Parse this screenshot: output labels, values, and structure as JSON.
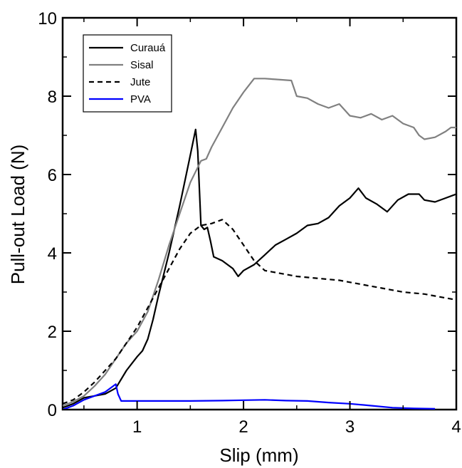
{
  "chart_data": {
    "type": "line",
    "title": "",
    "xlabel": "Slip (mm)",
    "ylabel": "Pull-out Load (N)",
    "xlim": [
      0.3,
      4
    ],
    "ylim": [
      0,
      10
    ],
    "x_ticks": [
      1,
      2,
      3,
      4
    ],
    "y_ticks": [
      0,
      2,
      4,
      6,
      8,
      10
    ],
    "grid": false,
    "legend_position": "top-left",
    "series": [
      {
        "name": "Curauá",
        "color": "#000000",
        "dash": "solid",
        "points": [
          [
            0.3,
            0.05
          ],
          [
            0.4,
            0.15
          ],
          [
            0.5,
            0.3
          ],
          [
            0.6,
            0.35
          ],
          [
            0.7,
            0.4
          ],
          [
            0.8,
            0.55
          ],
          [
            0.9,
            1.0
          ],
          [
            1.0,
            1.35
          ],
          [
            1.05,
            1.5
          ],
          [
            1.1,
            1.8
          ],
          [
            1.15,
            2.3
          ],
          [
            1.2,
            2.9
          ],
          [
            1.3,
            4.0
          ],
          [
            1.4,
            5.2
          ],
          [
            1.5,
            6.5
          ],
          [
            1.55,
            7.15
          ],
          [
            1.57,
            6.6
          ],
          [
            1.6,
            4.7
          ],
          [
            1.63,
            4.6
          ],
          [
            1.66,
            4.65
          ],
          [
            1.69,
            4.3
          ],
          [
            1.72,
            3.9
          ],
          [
            1.8,
            3.8
          ],
          [
            1.9,
            3.6
          ],
          [
            1.95,
            3.4
          ],
          [
            2.0,
            3.55
          ],
          [
            2.1,
            3.7
          ],
          [
            2.2,
            3.95
          ],
          [
            2.3,
            4.2
          ],
          [
            2.4,
            4.35
          ],
          [
            2.5,
            4.5
          ],
          [
            2.6,
            4.7
          ],
          [
            2.7,
            4.75
          ],
          [
            2.8,
            4.9
          ],
          [
            2.9,
            5.2
          ],
          [
            3.0,
            5.4
          ],
          [
            3.08,
            5.65
          ],
          [
            3.15,
            5.4
          ],
          [
            3.25,
            5.25
          ],
          [
            3.35,
            5.05
          ],
          [
            3.45,
            5.35
          ],
          [
            3.55,
            5.5
          ],
          [
            3.65,
            5.5
          ],
          [
            3.7,
            5.35
          ],
          [
            3.8,
            5.3
          ],
          [
            3.9,
            5.4
          ],
          [
            4.0,
            5.5
          ]
        ]
      },
      {
        "name": "Sisal",
        "color": "#808080",
        "dash": "solid",
        "points": [
          [
            0.3,
            0.1
          ],
          [
            0.4,
            0.2
          ],
          [
            0.5,
            0.35
          ],
          [
            0.6,
            0.6
          ],
          [
            0.7,
            0.9
          ],
          [
            0.8,
            1.3
          ],
          [
            0.9,
            1.7
          ],
          [
            1.0,
            2.0
          ],
          [
            1.1,
            2.5
          ],
          [
            1.2,
            3.3
          ],
          [
            1.3,
            4.2
          ],
          [
            1.4,
            5.0
          ],
          [
            1.5,
            5.8
          ],
          [
            1.6,
            6.35
          ],
          [
            1.65,
            6.4
          ],
          [
            1.7,
            6.7
          ],
          [
            1.8,
            7.2
          ],
          [
            1.9,
            7.7
          ],
          [
            2.0,
            8.1
          ],
          [
            2.1,
            8.45
          ],
          [
            2.2,
            8.45
          ],
          [
            2.3,
            8.43
          ],
          [
            2.45,
            8.4
          ],
          [
            2.5,
            8.0
          ],
          [
            2.6,
            7.95
          ],
          [
            2.7,
            7.8
          ],
          [
            2.8,
            7.7
          ],
          [
            2.9,
            7.8
          ],
          [
            3.0,
            7.5
          ],
          [
            3.1,
            7.45
          ],
          [
            3.2,
            7.55
          ],
          [
            3.3,
            7.4
          ],
          [
            3.4,
            7.5
          ],
          [
            3.5,
            7.3
          ],
          [
            3.6,
            7.2
          ],
          [
            3.65,
            7.0
          ],
          [
            3.7,
            6.9
          ],
          [
            3.8,
            6.95
          ],
          [
            3.9,
            7.1
          ],
          [
            3.95,
            7.2
          ],
          [
            4.0,
            7.2
          ]
        ]
      },
      {
        "name": "Jute",
        "color": "#000000",
        "dash": "dashed",
        "points": [
          [
            0.3,
            0.15
          ],
          [
            0.4,
            0.25
          ],
          [
            0.5,
            0.45
          ],
          [
            0.6,
            0.7
          ],
          [
            0.7,
            1.0
          ],
          [
            0.8,
            1.3
          ],
          [
            0.9,
            1.7
          ],
          [
            1.0,
            2.1
          ],
          [
            1.1,
            2.6
          ],
          [
            1.2,
            3.1
          ],
          [
            1.3,
            3.6
          ],
          [
            1.4,
            4.1
          ],
          [
            1.5,
            4.5
          ],
          [
            1.6,
            4.7
          ],
          [
            1.7,
            4.75
          ],
          [
            1.8,
            4.85
          ],
          [
            1.9,
            4.6
          ],
          [
            2.0,
            4.2
          ],
          [
            2.1,
            3.8
          ],
          [
            2.2,
            3.55
          ],
          [
            2.3,
            3.5
          ],
          [
            2.5,
            3.4
          ],
          [
            2.7,
            3.35
          ],
          [
            2.9,
            3.3
          ],
          [
            3.1,
            3.2
          ],
          [
            3.3,
            3.1
          ],
          [
            3.5,
            3.0
          ],
          [
            3.7,
            2.95
          ],
          [
            3.9,
            2.85
          ],
          [
            4.0,
            2.8
          ]
        ]
      },
      {
        "name": "PVA",
        "color": "#0000ff",
        "dash": "solid",
        "points": [
          [
            0.3,
            0.0
          ],
          [
            0.4,
            0.1
          ],
          [
            0.5,
            0.25
          ],
          [
            0.6,
            0.35
          ],
          [
            0.7,
            0.45
          ],
          [
            0.75,
            0.55
          ],
          [
            0.8,
            0.65
          ],
          [
            0.82,
            0.4
          ],
          [
            0.85,
            0.22
          ],
          [
            0.9,
            0.22
          ],
          [
            1.0,
            0.22
          ],
          [
            1.2,
            0.22
          ],
          [
            1.5,
            0.22
          ],
          [
            1.8,
            0.23
          ],
          [
            2.0,
            0.24
          ],
          [
            2.2,
            0.25
          ],
          [
            2.4,
            0.23
          ],
          [
            2.6,
            0.22
          ],
          [
            2.8,
            0.18
          ],
          [
            3.0,
            0.15
          ],
          [
            3.2,
            0.1
          ],
          [
            3.4,
            0.05
          ],
          [
            3.6,
            0.03
          ],
          [
            3.8,
            0.02
          ]
        ]
      }
    ]
  }
}
